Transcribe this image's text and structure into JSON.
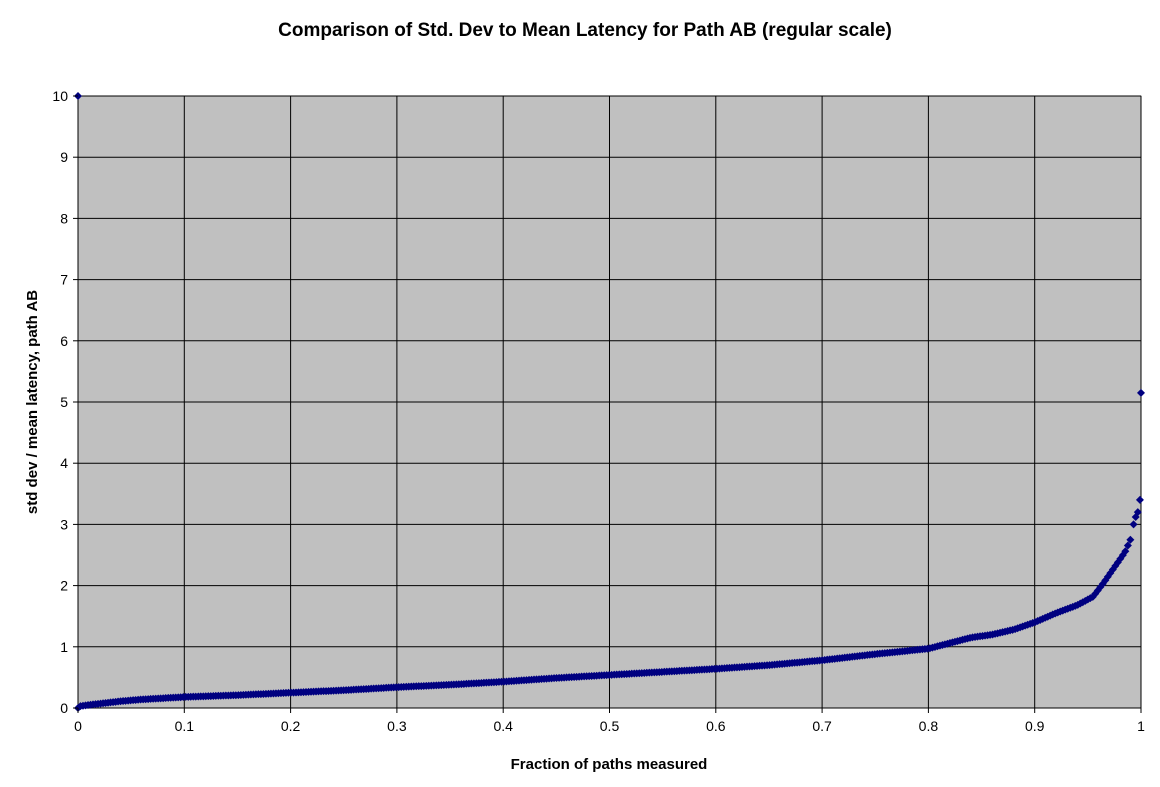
{
  "chart_data": {
    "type": "scatter",
    "title": "Comparison of Std. Dev to Mean Latency for Path AB (regular scale)",
    "xlabel": "Fraction of paths measured",
    "ylabel": "std dev / mean latency, path AB",
    "xlim": [
      0,
      1
    ],
    "ylim": [
      0,
      10
    ],
    "x_ticks": [
      "0",
      "0.1",
      "0.2",
      "0.3",
      "0.4",
      "0.5",
      "0.6",
      "0.7",
      "0.8",
      "0.9",
      "1"
    ],
    "y_ticks": [
      "0",
      "1",
      "2",
      "3",
      "4",
      "5",
      "6",
      "7",
      "8",
      "9",
      "10"
    ],
    "grid": true,
    "legend": "none",
    "colors": {
      "marker": "#000080",
      "plot_area": "#c0c0c0",
      "grid": "#000000"
    },
    "series": [
      {
        "marker": "diamond",
        "curve": [
          [
            0.0,
            0.0
          ],
          [
            0.002,
            0.03
          ],
          [
            0.01,
            0.05
          ],
          [
            0.02,
            0.07
          ],
          [
            0.04,
            0.11
          ],
          [
            0.06,
            0.14
          ],
          [
            0.08,
            0.16
          ],
          [
            0.1,
            0.18
          ],
          [
            0.15,
            0.21
          ],
          [
            0.2,
            0.25
          ],
          [
            0.25,
            0.29
          ],
          [
            0.3,
            0.34
          ],
          [
            0.35,
            0.38
          ],
          [
            0.4,
            0.43
          ],
          [
            0.45,
            0.49
          ],
          [
            0.5,
            0.54
          ],
          [
            0.55,
            0.59
          ],
          [
            0.6,
            0.64
          ],
          [
            0.65,
            0.7
          ],
          [
            0.7,
            0.78
          ],
          [
            0.75,
            0.88
          ],
          [
            0.8,
            0.97
          ],
          [
            0.82,
            1.06
          ],
          [
            0.84,
            1.15
          ],
          [
            0.86,
            1.2
          ],
          [
            0.88,
            1.28
          ],
          [
            0.9,
            1.4
          ],
          [
            0.92,
            1.55
          ],
          [
            0.94,
            1.68
          ],
          [
            0.955,
            1.82
          ],
          [
            0.965,
            2.05
          ],
          [
            0.975,
            2.3
          ],
          [
            0.985,
            2.55
          ],
          [
            0.99,
            2.75
          ]
        ],
        "outliers": [
          [
            0.993,
            3.0
          ],
          [
            0.995,
            3.12
          ],
          [
            0.997,
            3.2
          ],
          [
            0.999,
            3.4
          ],
          [
            1.0,
            5.15
          ],
          [
            0.0,
            10.0
          ]
        ]
      }
    ]
  }
}
